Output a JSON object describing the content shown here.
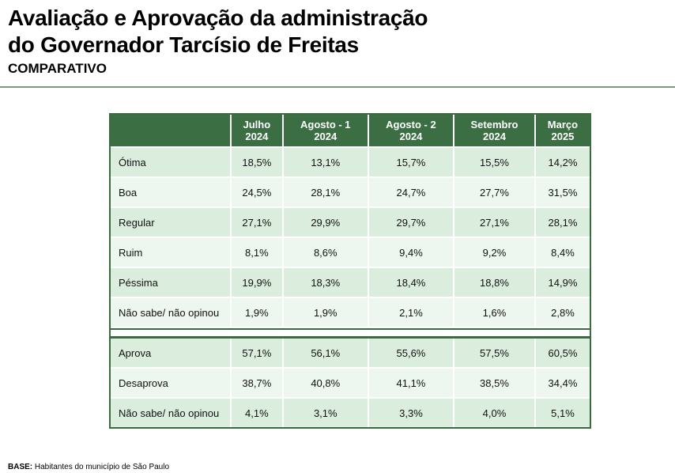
{
  "title_line1": "Avaliação e Aprovação da administração",
  "title_line2": "do Governador Tarcísio de Freitas",
  "subtitle": "COMPARATIVO",
  "columns": [
    {
      "line1": "Julho",
      "line2": "2024"
    },
    {
      "line1": "Agosto - 1",
      "line2": "2024"
    },
    {
      "line1": "Agosto - 2",
      "line2": "2024"
    },
    {
      "line1": "Setembro",
      "line2": "2024"
    },
    {
      "line1": "Março",
      "line2": "2025"
    }
  ],
  "evaluation_rows": [
    {
      "label": "Ótima",
      "values": [
        "18,5%",
        "13,1%",
        "15,7%",
        "15,5%",
        "14,2%"
      ]
    },
    {
      "label": "Boa",
      "values": [
        "24,5%",
        "28,1%",
        "24,7%",
        "27,7%",
        "31,5%"
      ]
    },
    {
      "label": "Regular",
      "values": [
        "27,1%",
        "29,9%",
        "29,7%",
        "27,1%",
        "28,1%"
      ]
    },
    {
      "label": "Ruim",
      "values": [
        "8,1%",
        "8,6%",
        "9,4%",
        "9,2%",
        "8,4%"
      ]
    },
    {
      "label": "Péssima",
      "values": [
        "19,9%",
        "18,3%",
        "18,4%",
        "18,8%",
        "14,9%"
      ]
    },
    {
      "label": "Não sabe/ não opinou",
      "values": [
        "1,9%",
        "1,9%",
        "2,1%",
        "1,6%",
        "2,8%"
      ]
    }
  ],
  "approval_rows": [
    {
      "label": "Aprova",
      "values": [
        "57,1%",
        "56,1%",
        "55,6%",
        "57,5%",
        "60,5%"
      ]
    },
    {
      "label": "Desaprova",
      "values": [
        "38,7%",
        "40,8%",
        "41,1%",
        "38,5%",
        "34,4%"
      ]
    },
    {
      "label": "Não sabe/ não opinou",
      "values": [
        "4,1%",
        "3,1%",
        "3,3%",
        "4,0%",
        "5,1%"
      ]
    }
  ],
  "footer": {
    "label": "BASE:",
    "text": " Habitantes do município de São Paulo"
  }
}
